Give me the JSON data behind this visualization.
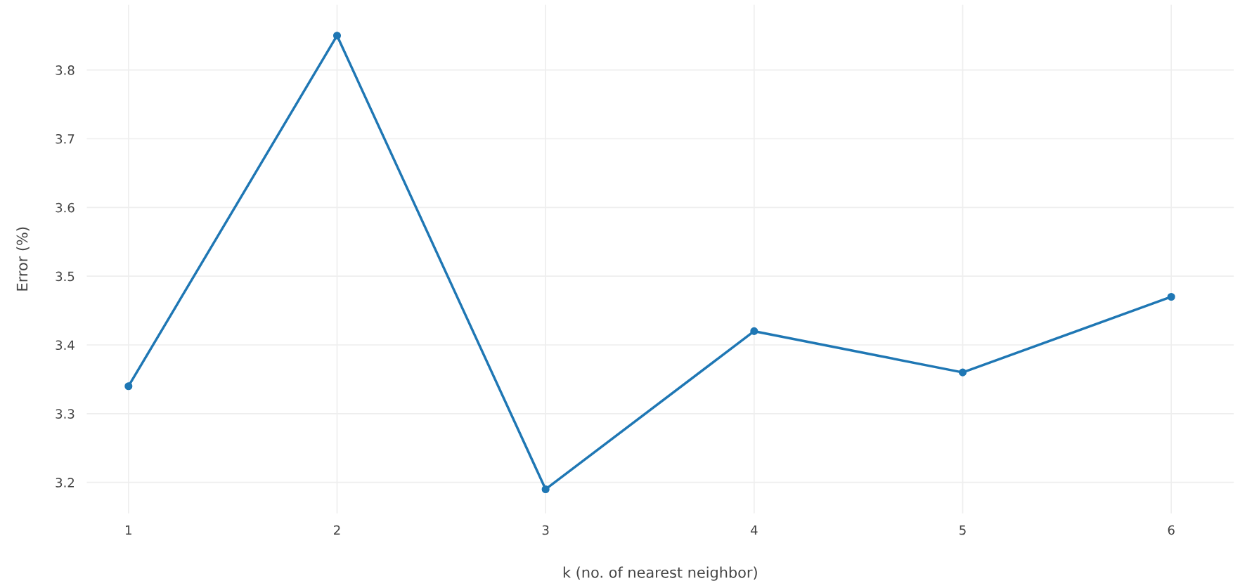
{
  "chart_data": {
    "type": "line",
    "xlabel": "k (no. of nearest neighbor)",
    "ylabel": "Error (%)",
    "x": [
      1,
      2,
      3,
      4,
      5,
      6
    ],
    "series": [
      {
        "color": "#1f77b4",
        "values": [
          3.34,
          3.85,
          3.19,
          3.42,
          3.36,
          3.47
        ]
      }
    ],
    "xlim": [
      0.8,
      6.3
    ],
    "xticks": [
      1,
      2,
      3,
      4,
      5,
      6
    ],
    "ylim": [
      3.155,
      3.895
    ],
    "yticks": [
      3.2,
      3.3,
      3.4,
      3.5,
      3.6,
      3.7,
      3.8
    ],
    "grid": true,
    "marker": "circle",
    "line_style": "solid"
  }
}
